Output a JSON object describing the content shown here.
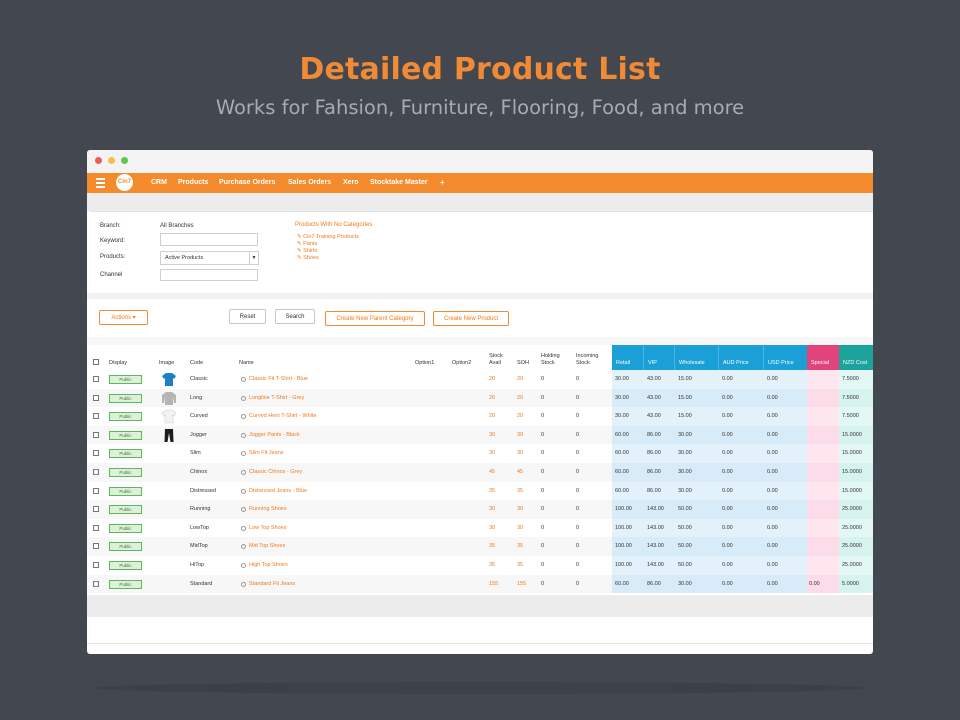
{
  "hero": {
    "title": "Detailed Product List",
    "subtitle": "Works for Fahsion, Furniture, Flooring, Food, and more"
  },
  "nav": {
    "logo": "Cin7",
    "items": [
      "CRM",
      "Products",
      "Purchase Orders",
      "Sales Orders",
      "Xero",
      "Stocktake Master",
      "+"
    ]
  },
  "filters": {
    "branch_label": "Branch:",
    "branch_value": "All Branches",
    "keyword_label": "Keyword:",
    "keyword_value": "",
    "products_label": "Products:",
    "products_value": "Active Products",
    "channel_label": "Channel",
    "channel_value": "",
    "categories_title": "Products With No Categories",
    "categories": [
      "Cin7 Training Products",
      "Pants",
      "Shirts",
      "Shoes"
    ]
  },
  "toolbar": {
    "actions": "Actions",
    "reset": "Reset",
    "search": "Search",
    "new_parent_category": "Create New Parent Category",
    "new_product": "Create New Product"
  },
  "colors": {
    "accent": "#f38a2c",
    "price_header": "#1a9fd6",
    "special_header": "#e0447a",
    "cost_header": "#1ba39c"
  },
  "table": {
    "headers": {
      "display": "Display",
      "image": "Image",
      "code": "Code",
      "name": "Name",
      "option1": "Option1",
      "option2": "Option2",
      "stock_avail": "Stock Avail",
      "soh": "SOH",
      "holding": "Holding Stock",
      "incoming": "Incoming Stock",
      "retail": "Retail",
      "vip": "VIP",
      "wholesale": "Wholesale",
      "aud": "AUD Price",
      "usd": "USD Price",
      "special": "Special",
      "nzd_cost": "NZD Cost"
    },
    "rows": [
      {
        "display": "Public",
        "image": "blue-tshirt",
        "code": "Classic",
        "name": "Classic Fit T-Shirt - Blue",
        "stock": "20",
        "soh": "20",
        "holding": "0",
        "incoming": "0",
        "retail": "30.00",
        "vip": "43.00",
        "wholesale": "15.00",
        "aud": "0.00",
        "usd": "0.00",
        "special": "",
        "cost": "7.5000"
      },
      {
        "display": "Public",
        "image": "grey-longsleeve",
        "code": "Long",
        "name": "Longline T-Shirt - Grey",
        "stock": "20",
        "soh": "20",
        "holding": "0",
        "incoming": "0",
        "retail": "30.00",
        "vip": "43.00",
        "wholesale": "15.00",
        "aud": "0.00",
        "usd": "0.00",
        "special": "",
        "cost": "7.5000"
      },
      {
        "display": "Public",
        "image": "white-tshirt",
        "code": "Curved",
        "name": "Curved Hem T-Shirt - White",
        "stock": "20",
        "soh": "20",
        "holding": "0",
        "incoming": "0",
        "retail": "30.00",
        "vip": "43.00",
        "wholesale": "15.00",
        "aud": "0.00",
        "usd": "0.00",
        "special": "",
        "cost": "7.5000"
      },
      {
        "display": "Public",
        "image": "black-pants",
        "code": "Jogger",
        "name": "Jogger Pants - Black",
        "stock": "30",
        "soh": "30",
        "holding": "0",
        "incoming": "0",
        "retail": "60.00",
        "vip": "86.00",
        "wholesale": "30.00",
        "aud": "0.00",
        "usd": "0.00",
        "special": "",
        "cost": "15.0000"
      },
      {
        "display": "Public",
        "image": "",
        "code": "Slim",
        "name": "Slim Fit Jeans",
        "stock": "30",
        "soh": "30",
        "holding": "0",
        "incoming": "0",
        "retail": "60.00",
        "vip": "86.00",
        "wholesale": "30.00",
        "aud": "0.00",
        "usd": "0.00",
        "special": "",
        "cost": "15.0000"
      },
      {
        "display": "Public",
        "image": "",
        "code": "Chinos",
        "name": "Classic Chinos - Grey",
        "stock": "45",
        "soh": "45",
        "holding": "0",
        "incoming": "0",
        "retail": "60.00",
        "vip": "86.00",
        "wholesale": "30.00",
        "aud": "0.00",
        "usd": "0.00",
        "special": "",
        "cost": "15.0000"
      },
      {
        "display": "Public",
        "image": "",
        "code": "Distressed",
        "name": "Distressed Jeans - Blue",
        "stock": "35",
        "soh": "35",
        "holding": "0",
        "incoming": "0",
        "retail": "60.00",
        "vip": "86.00",
        "wholesale": "30.00",
        "aud": "0.00",
        "usd": "0.00",
        "special": "",
        "cost": "15.0000"
      },
      {
        "display": "Public",
        "image": "",
        "code": "Running",
        "name": "Running Shoes",
        "stock": "30",
        "soh": "30",
        "holding": "0",
        "incoming": "0",
        "retail": "100.00",
        "vip": "143.00",
        "wholesale": "50.00",
        "aud": "0.00",
        "usd": "0.00",
        "special": "",
        "cost": "25.0000"
      },
      {
        "display": "Public",
        "image": "",
        "code": "LowTop",
        "name": "Low Top Shoes",
        "stock": "30",
        "soh": "30",
        "holding": "0",
        "incoming": "0",
        "retail": "100.00",
        "vip": "143.00",
        "wholesale": "50.00",
        "aud": "0.00",
        "usd": "0.00",
        "special": "",
        "cost": "25.0000"
      },
      {
        "display": "Public",
        "image": "",
        "code": "MidTop",
        "name": "Mid Top Shoes",
        "stock": "35",
        "soh": "35",
        "holding": "0",
        "incoming": "0",
        "retail": "100.00",
        "vip": "143.00",
        "wholesale": "50.00",
        "aud": "0.00",
        "usd": "0.00",
        "special": "",
        "cost": "25.0000"
      },
      {
        "display": "Public",
        "image": "",
        "code": "HiTop",
        "name": "High Top Shoes",
        "stock": "35",
        "soh": "35",
        "holding": "0",
        "incoming": "0",
        "retail": "100.00",
        "vip": "143.00",
        "wholesale": "50.00",
        "aud": "0.00",
        "usd": "0.00",
        "special": "",
        "cost": "25.0000"
      },
      {
        "display": "Public",
        "image": "",
        "code": "Standard",
        "name": "Standard Fit Jeans",
        "stock": "155",
        "soh": "155",
        "holding": "0",
        "incoming": "0",
        "retail": "60.00",
        "vip": "86.00",
        "wholesale": "30.00",
        "aud": "0.00",
        "usd": "0.00",
        "special": "0.00",
        "cost": "5.0000"
      }
    ]
  }
}
